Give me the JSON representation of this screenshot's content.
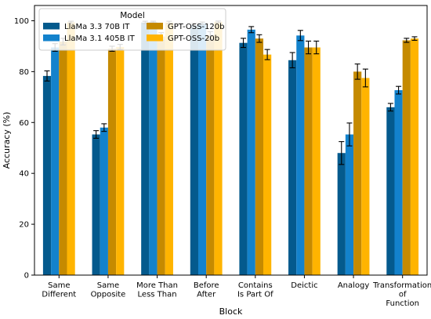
{
  "chart_data": {
    "type": "bar",
    "xlabel": "Block",
    "ylabel": "Accuracy (%)",
    "ylim": [
      0,
      106
    ],
    "yticks": [
      0,
      20,
      40,
      60,
      80,
      100
    ],
    "grid": false,
    "legend": {
      "title": "Model",
      "placement": "top-left",
      "columns": 2
    },
    "categories": [
      [
        "Same",
        "Different"
      ],
      [
        "Same",
        "Opposite"
      ],
      [
        "More Than",
        "Less Than"
      ],
      [
        "Before",
        "After"
      ],
      [
        "Contains",
        "Is Part Of"
      ],
      [
        "Deictic"
      ],
      [
        "Analogy"
      ],
      [
        "Transformation",
        "of",
        "Function"
      ]
    ],
    "series": [
      {
        "name": "LlaMa 3.3 70B IT",
        "color": "#045a8d",
        "values": [
          78.3,
          55.3,
          99.3,
          98.2,
          91.3,
          84.5,
          48.0,
          66.0
        ],
        "errors": [
          2.0,
          1.5,
          0.5,
          0.8,
          1.8,
          3.0,
          4.5,
          1.5
        ]
      },
      {
        "name": "LlaMa 3.1 405B IT",
        "color": "#1382cc",
        "values": [
          89.5,
          58.0,
          99.5,
          99.0,
          96.5,
          94.2,
          55.3,
          72.7
        ],
        "errors": [
          1.5,
          1.5,
          0.3,
          0.5,
          1.2,
          2.0,
          4.5,
          1.5
        ]
      },
      {
        "name": "GPT-OSS-120b",
        "color": "#c58a00",
        "values": [
          91.8,
          89.0,
          93.8,
          94.2,
          93.0,
          89.5,
          80.0,
          92.3
        ],
        "errors": [
          1.3,
          1.0,
          1.5,
          1.5,
          1.5,
          2.5,
          3.0,
          0.8
        ]
      },
      {
        "name": "GPT-OSS-20b",
        "color": "#ffb400",
        "values": [
          99.4,
          89.7,
          99.3,
          99.6,
          86.7,
          89.5,
          77.5,
          93.0
        ],
        "errors": [
          0.4,
          1.0,
          0.5,
          0.3,
          2.0,
          2.5,
          3.5,
          0.7
        ]
      }
    ]
  }
}
